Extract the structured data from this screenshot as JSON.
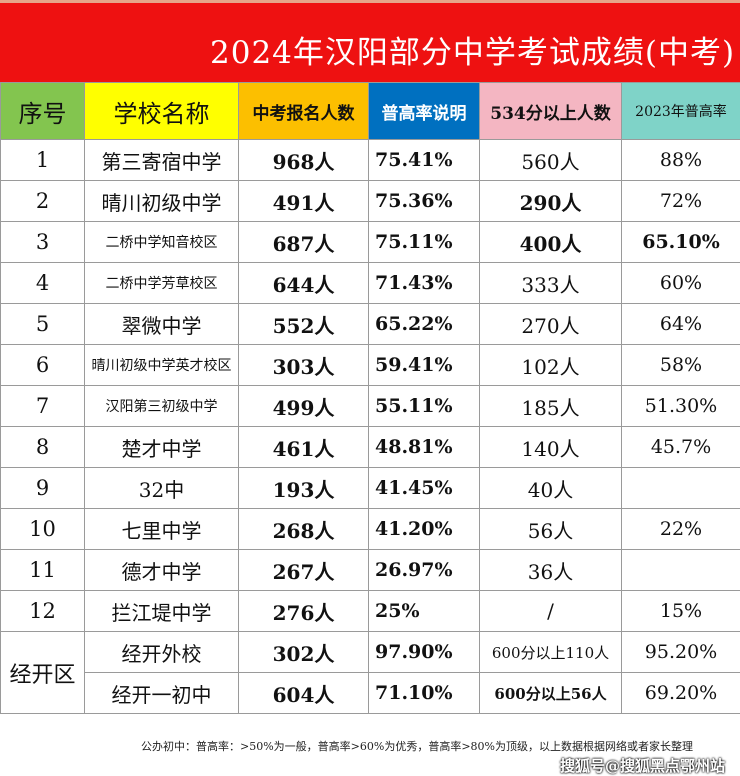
{
  "title": "2024年汉阳部分中学考试成绩(中考)",
  "headers": [
    "序号",
    "学校名称",
    "中考报名人数",
    "普高率说明",
    "534分以上人数",
    "2023年普高率"
  ],
  "rows": [
    {
      "no": "1",
      "school": "第三寄宿中学",
      "applicants": "968人",
      "rate": "75.41%",
      "above": "560人",
      "prev": "88%"
    },
    {
      "no": "2",
      "school": "晴川初级中学",
      "applicants": "491人",
      "rate": "75.36%",
      "above": "290人",
      "prev": "72%"
    },
    {
      "no": "3",
      "school": "二桥中学知音校区",
      "applicants": "687人",
      "rate": "75.11%",
      "above": "400人",
      "prev": "65.10%"
    },
    {
      "no": "4",
      "school": "二桥中学芳草校区",
      "applicants": "644人",
      "rate": "71.43%",
      "above": "333人",
      "prev": "60%"
    },
    {
      "no": "5",
      "school": "翠微中学",
      "applicants": "552人",
      "rate": "65.22%",
      "above": "270人",
      "prev": "64%"
    },
    {
      "no": "6",
      "school": "晴川初级中学英才校区",
      "applicants": "303人",
      "rate": "59.41%",
      "above": "102人",
      "prev": "58%"
    },
    {
      "no": "7",
      "school": "汉阳第三初级中学",
      "applicants": "499人",
      "rate": "55.11%",
      "above": "185人",
      "prev": "51.30%"
    },
    {
      "no": "8",
      "school": "楚才中学",
      "applicants": "461人",
      "rate": "48.81%",
      "above": "140人",
      "prev": "45.7%"
    },
    {
      "no": "9",
      "school": "32中",
      "applicants": "193人",
      "rate": "41.45%",
      "above": "40人",
      "prev": ""
    },
    {
      "no": "10",
      "school": "七里中学",
      "applicants": "268人",
      "rate": "41.20%",
      "above": "56人",
      "prev": "22%"
    },
    {
      "no": "11",
      "school": "德才中学",
      "applicants": "267人",
      "rate": "26.97%",
      "above": "36人",
      "prev": ""
    },
    {
      "no": "12",
      "school": "拦江堤中学",
      "applicants": "276人",
      "rate": "25%",
      "above": "/",
      "prev": "15%"
    }
  ],
  "zone": {
    "label": "经开区",
    "rows": [
      {
        "school": "经开外校",
        "applicants": "302人",
        "rate": "97.90%",
        "above": "600分以上110人",
        "prev": "95.20%"
      },
      {
        "school": "经开一初中",
        "applicants": "604人",
        "rate": "71.10%",
        "above": "600分以上56人",
        "prev": "69.20%"
      }
    ]
  },
  "footer": "公办初中：普高率：>50%为一般，普高率>60%为优秀，普高率>80%为顶级，以上数据根据网络或者家长整理",
  "watermark": "搜狐号@搜狐黑点鄂州站",
  "colors": {
    "title_bg": "#ee1111",
    "header_no": "#83c54f",
    "header_school": "#ffff00",
    "header_applicants": "#fcbf00",
    "header_rate": "#0070c0",
    "header_above": "#f4b6c2",
    "header_prev": "#7fd3c8"
  }
}
